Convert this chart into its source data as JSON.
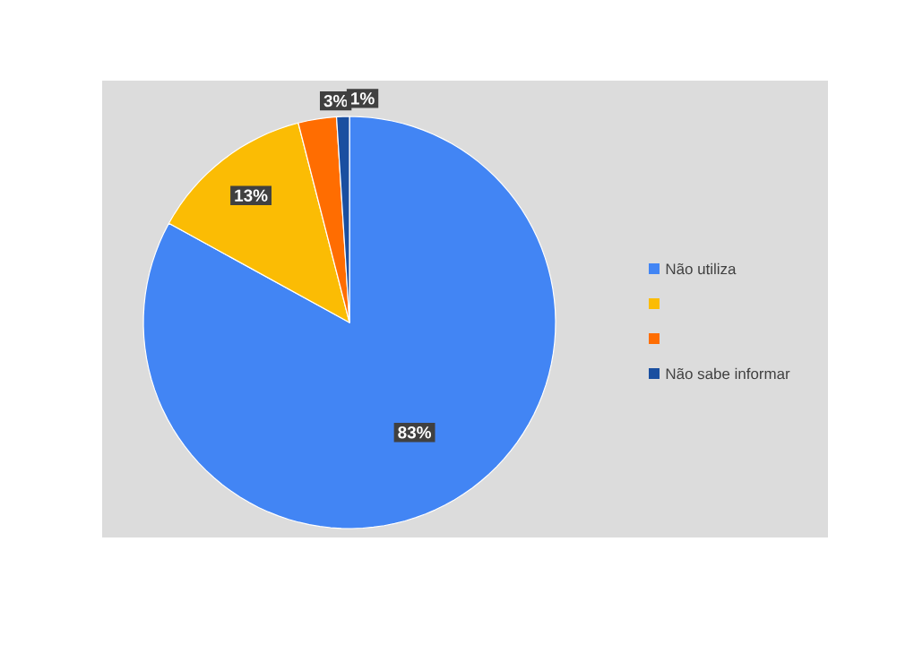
{
  "chart_data": {
    "type": "pie",
    "categories": [
      "Não utiliza",
      null,
      null,
      "Não sabe informar"
    ],
    "values": [
      83,
      13,
      3,
      1
    ],
    "colors": [
      "#4285f4",
      "#fbbc04",
      "#ff6d01",
      "#1a4fa0"
    ],
    "value_labels": [
      "83%",
      "13%",
      "3%",
      "1%"
    ],
    "legend": "right"
  }
}
